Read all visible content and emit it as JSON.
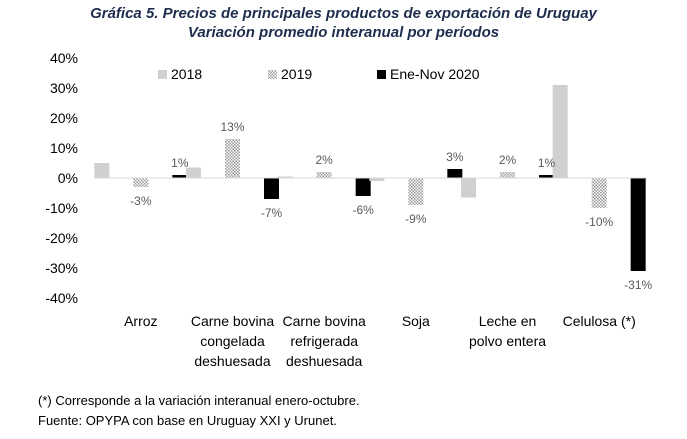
{
  "title": "Gráfica 5. Precios de principales productos de exportación de Uruguay",
  "subtitle": "Variación promedio interanual por períodos",
  "colors": {
    "s2018": "#d0d0d0",
    "s2019": "#c8c8c8",
    "s2020": "#000000",
    "axis": "#d9d9d9"
  },
  "chart_data": {
    "type": "bar",
    "categories": [
      [
        "Arroz"
      ],
      [
        "Carne bovina",
        "congelada",
        "deshuesada"
      ],
      [
        "Carne bovina",
        "refrigerada",
        "deshuesada"
      ],
      [
        "Soja"
      ],
      [
        "Leche en",
        "polvo entera"
      ],
      [
        "Celulosa (*)"
      ]
    ],
    "series": [
      {
        "name": "2018",
        "values": [
          5,
          3.5,
          0.5,
          -1,
          -6.5,
          31
        ]
      },
      {
        "name": "2019",
        "values": [
          -3,
          13,
          2,
          -9,
          2,
          -10
        ]
      },
      {
        "name": "Ene-Nov 2020",
        "values": [
          1,
          -7,
          -6,
          3,
          1,
          -31
        ]
      }
    ],
    "data_labels": [
      [
        "",
        "",
        "",
        "",
        "",
        ""
      ],
      [
        "-3%",
        "13%",
        "2%",
        "-9%",
        "2%",
        "-10%"
      ],
      [
        "1%",
        "-7%",
        "-6%",
        "3%",
        "1%",
        "-31%"
      ]
    ],
    "yticks": [
      "40%",
      "30%",
      "20%",
      "10%",
      "0%",
      "-10%",
      "-20%",
      "-30%",
      "-40%"
    ],
    "ylim": [
      -40,
      40
    ],
    "grid": false,
    "legend": "top"
  },
  "notes": {
    "line1": "(*) Corresponde a la variación interanual enero-octubre.",
    "line2": "Fuente: OPYPA con base en Uruguay XXI y Urunet."
  }
}
